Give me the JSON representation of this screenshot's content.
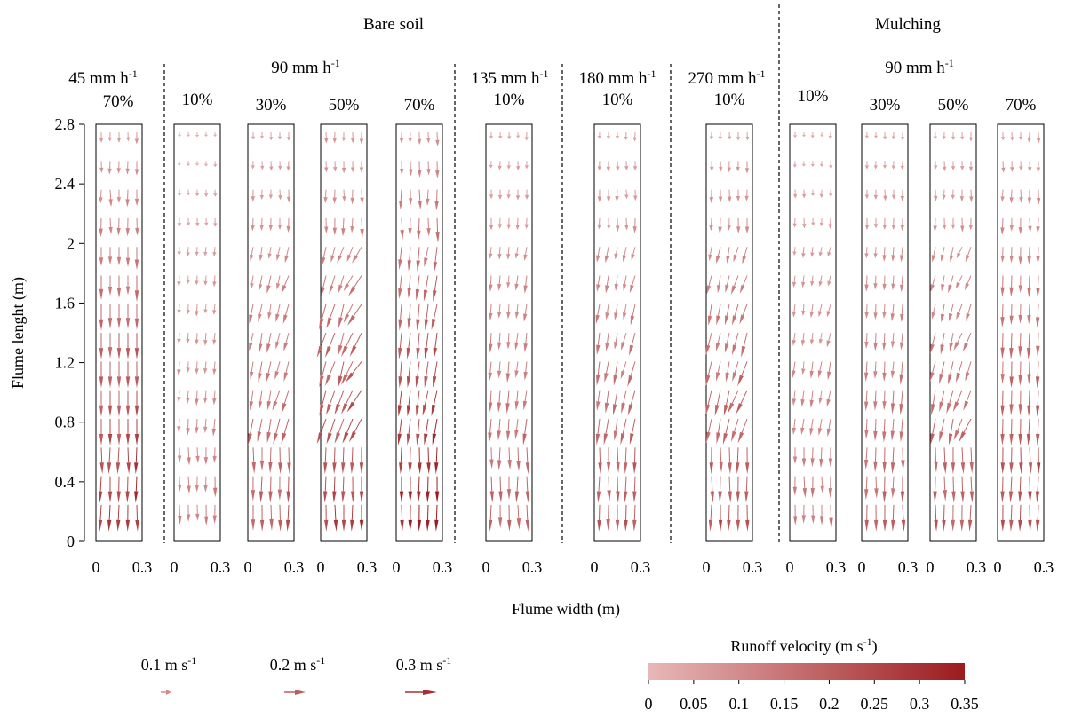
{
  "chart_data": {
    "type": "quiver",
    "units": "m s^-1",
    "color_max": "#9b1b1e",
    "color_min": "#e8b8b8",
    "groups": [
      {
        "label": "Bare soil",
        "rates": [
          "45 mm h",
          "90 mm h",
          "135 mm h",
          "180 mm h",
          "270 mm h"
        ]
      },
      {
        "label": "Mulching",
        "rates": [
          "90 mm h"
        ]
      }
    ],
    "rate_sup": "-1",
    "panels": [
      {
        "group": "Bare soil",
        "rate": "45 mm h",
        "slope": "70%",
        "vmax": 0.28,
        "tilt": 0.0
      },
      {
        "group": "Bare soil",
        "rate": "90 mm h",
        "slope": "10%",
        "vmax": 0.12,
        "tilt": 0.12
      },
      {
        "group": "Bare soil",
        "rate": "90 mm h",
        "slope": "30%",
        "vmax": 0.2,
        "tilt": 0.35
      },
      {
        "group": "Bare soil",
        "rate": "90 mm h",
        "slope": "50%",
        "vmax": 0.26,
        "tilt": 0.6
      },
      {
        "group": "Bare soil",
        "rate": "90 mm h",
        "slope": "70%",
        "vmax": 0.32,
        "tilt": 0.2
      },
      {
        "group": "Bare soil",
        "rate": "135 mm h",
        "slope": "10%",
        "vmax": 0.18,
        "tilt": 0.15
      },
      {
        "group": "Bare soil",
        "rate": "180 mm h",
        "slope": "10%",
        "vmax": 0.2,
        "tilt": 0.3
      },
      {
        "group": "Bare soil",
        "rate": "270 mm h",
        "slope": "10%",
        "vmax": 0.22,
        "tilt": 0.4
      },
      {
        "group": "Mulching",
        "rate": "90 mm h",
        "slope": "10%",
        "vmax": 0.14,
        "tilt": 0.25
      },
      {
        "group": "Mulching",
        "rate": "90 mm h",
        "slope": "30%",
        "vmax": 0.18,
        "tilt": 0.1
      },
      {
        "group": "Mulching",
        "rate": "90 mm h",
        "slope": "50%",
        "vmax": 0.2,
        "tilt": 0.45
      },
      {
        "group": "Mulching",
        "rate": "90 mm h",
        "slope": "70%",
        "vmax": 0.24,
        "tilt": 0.05
      }
    ],
    "y_axis": {
      "label": "Flume lenght (m)",
      "ticks": [
        "0",
        "0.4",
        "0.8",
        "1.2",
        "1.6",
        "2",
        "2.4",
        "2.8"
      ],
      "range": [
        0,
        2.8
      ]
    },
    "x_axis": {
      "label": "Flume width (m)",
      "ticks": [
        "0",
        "0.3"
      ],
      "range": [
        0,
        0.3
      ]
    },
    "reference_arrows": [
      {
        "label": "0.1 m s",
        "value": 0.1
      },
      {
        "label": "0.2 m s",
        "value": 0.2
      },
      {
        "label": "0.3 m s",
        "value": 0.3
      }
    ],
    "colorbar": {
      "title": "Runoff velocity (m s",
      "ticks": [
        "0",
        "0.05",
        "0.1",
        "0.15",
        "0.2",
        "0.25",
        "0.3",
        "0.35"
      ],
      "range": [
        0,
        0.35
      ]
    },
    "grid": "no"
  }
}
